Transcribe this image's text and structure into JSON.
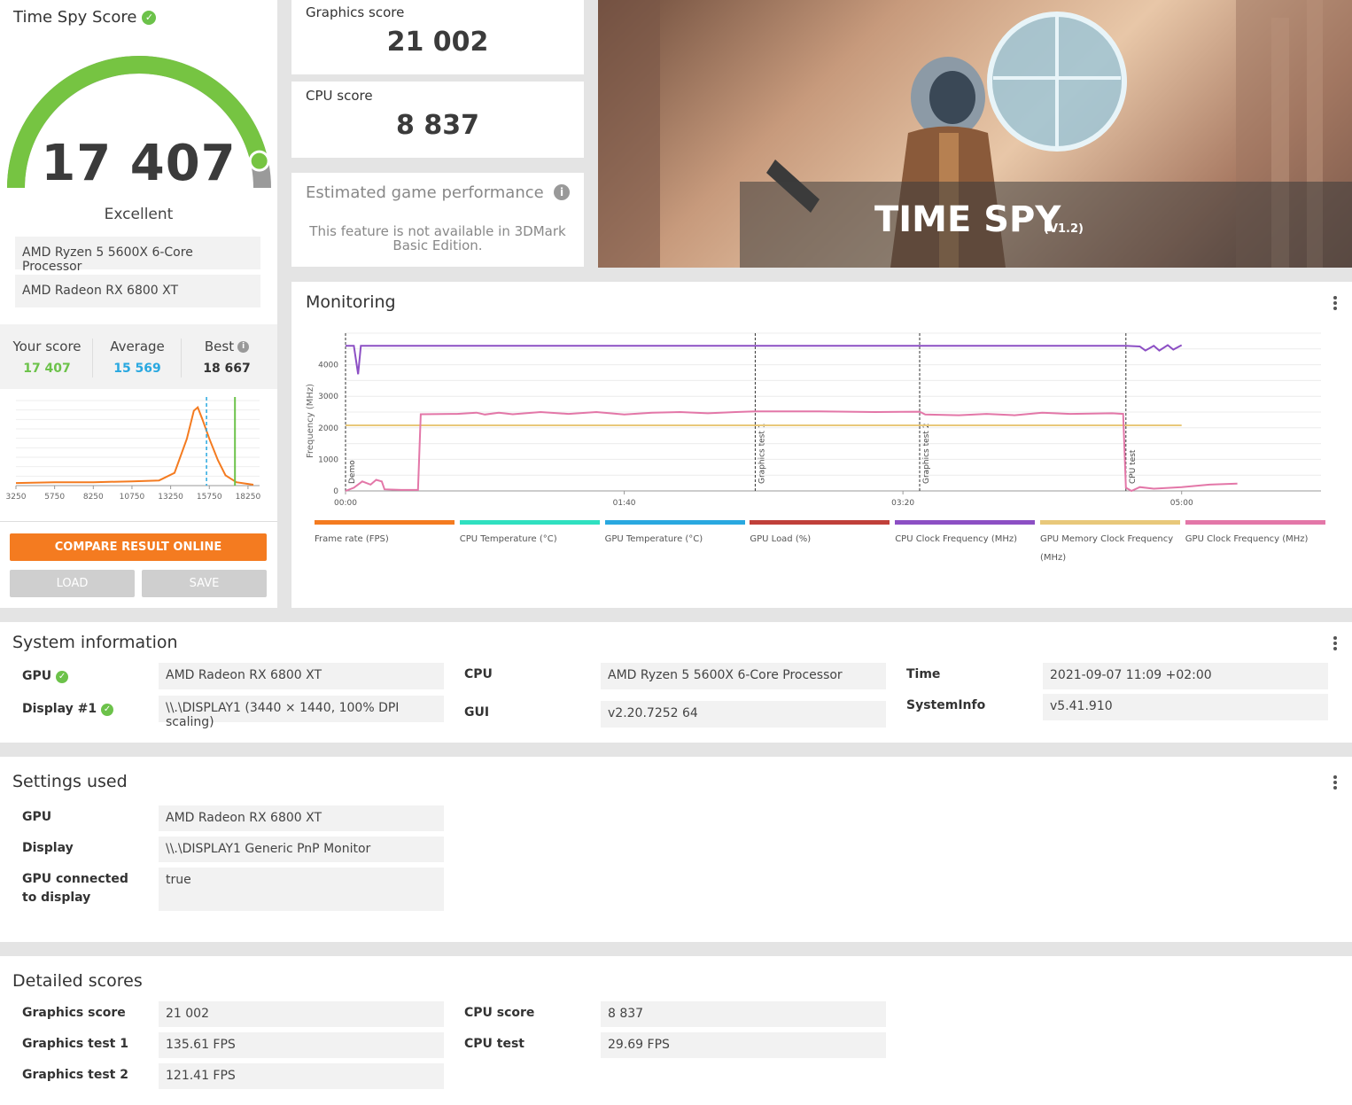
{
  "score_panel": {
    "title": "Time Spy Score",
    "score": "17 407",
    "gauge_fill": 0.93,
    "rating": "Excellent",
    "cpu": "AMD Ryzen 5 5600X 6-Core Processor",
    "gpu": "AMD Radeon RX 6800 XT",
    "your_score_label": "Your score",
    "your_score": "17 407",
    "average_label": "Average",
    "average": "15 569",
    "best_label": "Best",
    "best": "18 667",
    "compare_label": "COMPARE RESULT ONLINE",
    "load_label": "LOAD",
    "save_label": "SAVE"
  },
  "distribution_chart": {
    "type": "line",
    "x_ticks": [
      "3250",
      "5750",
      "8250",
      "10750",
      "13250",
      "15750",
      "18250"
    ],
    "x_range": [
      3250,
      19000
    ],
    "curve": [
      [
        3250,
        0.03
      ],
      [
        5750,
        0.04
      ],
      [
        8250,
        0.04
      ],
      [
        10750,
        0.05
      ],
      [
        12500,
        0.06
      ],
      [
        13500,
        0.15
      ],
      [
        14300,
        0.55
      ],
      [
        14750,
        0.88
      ],
      [
        15000,
        0.92
      ],
      [
        15300,
        0.78
      ],
      [
        15750,
        0.55
      ],
      [
        16300,
        0.3
      ],
      [
        16800,
        0.12
      ],
      [
        17500,
        0.04
      ],
      [
        18250,
        0.02
      ],
      [
        18600,
        0.01
      ]
    ],
    "average_marker": 15569,
    "your_marker": 17407,
    "colors": {
      "curve": "#f47b20",
      "average": "#29a8e0",
      "yours": "#6cc24a"
    }
  },
  "graphics_card": {
    "label": "Graphics score",
    "value": "21 002"
  },
  "cpu_card": {
    "label": "CPU score",
    "value": "8 837"
  },
  "estimate_card": {
    "title": "Estimated game performance",
    "message": "This feature is not available in 3DMark Basic Edition."
  },
  "hero": {
    "title": "TIME SPY",
    "version": "(V1.2)"
  },
  "monitoring": {
    "title": "Monitoring",
    "chart_data": {
      "type": "line",
      "ylabel": "Frequency (MHz)",
      "y_ticks": [
        "0",
        "1000",
        "2000",
        "3000",
        "4000"
      ],
      "ylim": [
        0,
        5000
      ],
      "x_ticks": [
        "00:00",
        "01:40",
        "03:20",
        "05:00"
      ],
      "xlim": [
        0,
        350
      ],
      "markers": [
        {
          "t": 0,
          "label": "Demo"
        },
        {
          "t": 147,
          "label": "Graphics test 1"
        },
        {
          "t": 206,
          "label": "Graphics test 2"
        },
        {
          "t": 280,
          "label": "CPU test"
        }
      ],
      "series": [
        {
          "name": "CPU Clock Frequency (MHz)",
          "color": "#8c4fc4",
          "points": [
            [
              0,
              4600
            ],
            [
              3,
              4600
            ],
            [
              4.5,
              3700
            ],
            [
              5.5,
              4600
            ],
            [
              250,
              4600
            ],
            [
              280,
              4600
            ],
            [
              285,
              4580
            ],
            [
              287,
              4450
            ],
            [
              290,
              4600
            ],
            [
              292,
              4450
            ],
            [
              295,
              4620
            ],
            [
              297,
              4480
            ],
            [
              300,
              4620
            ]
          ]
        },
        {
          "name": "GPU Memory Clock Frequency (MHz)",
          "color": "#e8c87a",
          "points": [
            [
              0,
              2080
            ],
            [
              300,
              2080
            ]
          ]
        },
        {
          "name": "GPU Clock Frequency (MHz)",
          "color": "#e377a8",
          "points": [
            [
              0,
              0
            ],
            [
              3,
              100
            ],
            [
              6,
              300
            ],
            [
              9,
              200
            ],
            [
              11,
              350
            ],
            [
              13,
              300
            ],
            [
              14,
              50
            ],
            [
              20,
              30
            ],
            [
              26,
              30
            ],
            [
              27,
              2430
            ],
            [
              40,
              2440
            ],
            [
              47,
              2480
            ],
            [
              50,
              2420
            ],
            [
              55,
              2480
            ],
            [
              60,
              2430
            ],
            [
              70,
              2500
            ],
            [
              80,
              2440
            ],
            [
              90,
              2500
            ],
            [
              100,
              2420
            ],
            [
              110,
              2480
            ],
            [
              120,
              2500
            ],
            [
              130,
              2460
            ],
            [
              140,
              2500
            ],
            [
              147,
              2520
            ],
            [
              170,
              2520
            ],
            [
              190,
              2500
            ],
            [
              206,
              2510
            ],
            [
              208,
              2420
            ],
            [
              220,
              2400
            ],
            [
              230,
              2440
            ],
            [
              240,
              2400
            ],
            [
              250,
              2480
            ],
            [
              260,
              2440
            ],
            [
              275,
              2460
            ],
            [
              279,
              2440
            ],
            [
              280,
              100
            ],
            [
              282,
              0
            ],
            [
              285,
              120
            ],
            [
              290,
              70
            ],
            [
              300,
              120
            ],
            [
              310,
              200
            ],
            [
              320,
              230
            ]
          ]
        }
      ]
    },
    "legend": [
      {
        "label": "Frame rate (FPS)",
        "color": "#f47b20"
      },
      {
        "label": "CPU Temperature (°C)",
        "color": "#2fe0c0"
      },
      {
        "label": "GPU Temperature (°C)",
        "color": "#29a8e0"
      },
      {
        "label": "GPU Load (%)",
        "color": "#c0403a"
      },
      {
        "label": "CPU Clock Frequency (MHz)",
        "color": "#8c4fc4"
      },
      {
        "label": "GPU Memory Clock Frequency (MHz)",
        "color": "#e8c87a"
      },
      {
        "label": "GPU Clock Frequency (MHz)",
        "color": "#e377a8"
      }
    ]
  },
  "system_info": {
    "title": "System information",
    "gpu_label": "GPU",
    "gpu_value": "AMD Radeon RX 6800 XT",
    "display_label": "Display #1",
    "display_value": "\\\\.\\DISPLAY1 (3440 × 1440, 100% DPI scaling)",
    "cpu_label": "CPU",
    "cpu_value": "AMD Ryzen 5 5600X 6-Core Processor",
    "gui_label": "GUI",
    "gui_value": "v2.20.7252 64",
    "time_label": "Time",
    "time_value": "2021-09-07 11:09 +02:00",
    "sysinfo_label": "SystemInfo",
    "sysinfo_value": "v5.41.910"
  },
  "settings": {
    "title": "Settings used",
    "gpu_label": "GPU",
    "gpu_value": "AMD Radeon RX 6800 XT",
    "display_label": "Display",
    "display_value": "\\\\.\\DISPLAY1 Generic PnP Monitor",
    "connected_label": "GPU connected to display",
    "connected_value": "true"
  },
  "detailed": {
    "title": "Detailed scores",
    "graphics_score_label": "Graphics score",
    "graphics_score_value": "21 002",
    "gt1_label": "Graphics test 1",
    "gt1_value": "135.61 FPS",
    "gt2_label": "Graphics test 2",
    "gt2_value": "121.41 FPS",
    "cpu_score_label": "CPU score",
    "cpu_score_value": "8 837",
    "cpu_test_label": "CPU test",
    "cpu_test_value": "29.69 FPS"
  }
}
